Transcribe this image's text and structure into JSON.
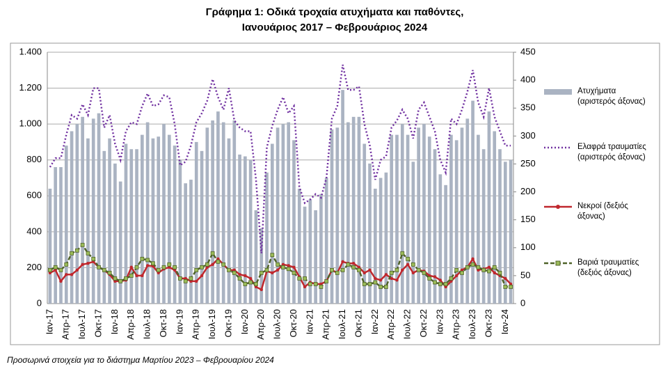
{
  "chart_data": {
    "type": "bar-line",
    "title": "Γράφημα 1: Οδικά τροχαία ατυχήματα και παθόντες,",
    "subtitle": "Ιανουάριος 2017 – Φεβρουάριος 2024",
    "note": "Προσωρινά στοιχεία για το διάστημα Μαρτίου 2023 – Φεβρουαρίου 2024",
    "categories": [
      "Ιαν-17",
      null,
      null,
      "Απρ-17",
      null,
      null,
      "Ιουλ-17",
      null,
      null,
      "Οκτ-17",
      null,
      null,
      "Ιαν-18",
      null,
      null,
      "Απρ-18",
      null,
      null,
      "Ιουλ-18",
      null,
      null,
      "Οκτ-18",
      null,
      null,
      "Ιαν-19",
      null,
      null,
      "Απρ-19",
      null,
      null,
      "Ιουλ-19",
      null,
      null,
      "Οκτ-19",
      null,
      null,
      "Ιαν-20",
      null,
      null,
      "Απρ-20",
      null,
      null,
      "Ιουλ-20",
      null,
      null,
      "Οκτ-20",
      null,
      null,
      "Ιαν-21",
      null,
      null,
      "Απρ-21",
      null,
      null,
      "Ιουλ-21",
      null,
      null,
      "Οκτ-21",
      null,
      null,
      "Ιαν-22",
      null,
      null,
      "Απρ-22",
      null,
      null,
      "Ιουλ-22",
      null,
      null,
      "Οκτ-22",
      null,
      null,
      "Ιαν-23",
      null,
      null,
      "Απρ-23",
      null,
      null,
      "Ιουλ-23",
      null,
      null,
      "Οκτ-23",
      null,
      null,
      "Ιαν-24",
      null
    ],
    "ylim": [
      0,
      1400
    ],
    "yticks": [
      0,
      200,
      400,
      600,
      800,
      {
        "value": 1000,
        "label": "1.000"
      },
      {
        "value": 1200,
        "label": "1.200"
      },
      {
        "value": 1400,
        "label": "1.400"
      }
    ],
    "y2lim": [
      0,
      450
    ],
    "y2ticks": [
      0,
      50,
      100,
      150,
      200,
      250,
      300,
      350,
      400,
      450
    ],
    "grid": true,
    "legend": "right",
    "series": [
      {
        "name": "Ατυχήματα (αριστερός άξονας)",
        "kind": "bar",
        "color": "#aab3c2",
        "values": [
          640,
          760,
          760,
          880,
          960,
          1000,
          1040,
          920,
          1030,
          1060,
          850,
          920,
          780,
          680,
          890,
          860,
          860,
          940,
          1010,
          920,
          930,
          1000,
          940,
          880,
          800,
          670,
          690,
          900,
          850,
          980,
          1020,
          1070,
          1010,
          920,
          1020,
          830,
          820,
          800,
          520,
          420,
          730,
          890,
          980,
          1000,
          1010,
          910,
          640,
          540,
          580,
          520,
          610,
          700,
          970,
          980,
          1190,
          1010,
          1040,
          1040,
          890,
          780,
          640,
          700,
          730,
          940,
          940,
          1000,
          940,
          790,
          980,
          1000,
          930,
          860,
          720,
          660,
          940,
          910,
          980,
          1030,
          1130,
          940,
          860,
          1070,
          960,
          860,
          790,
          800
        ]
      },
      {
        "name": "Ελαφρά τραυματίες (αριστερός άξονας)",
        "kind": "dotted",
        "color": "#7030a0",
        "values": [
          760,
          810,
          810,
          940,
          1050,
          1030,
          1110,
          1050,
          1200,
          1200,
          980,
          1050,
          890,
          800,
          960,
          1010,
          1000,
          1100,
          1170,
          1100,
          1110,
          1160,
          1150,
          1000,
          770,
          790,
          880,
          1010,
          1060,
          1130,
          1250,
          1150,
          1080,
          1200,
          1020,
          980,
          960,
          960,
          690,
          280,
          870,
          990,
          1080,
          1150,
          1060,
          1100,
          650,
          560,
          580,
          610,
          590,
          700,
          1030,
          1100,
          1330,
          1190,
          1190,
          1210,
          1000,
          880,
          690,
          800,
          820,
          980,
          1020,
          1080,
          1030,
          920,
          1080,
          1120,
          1040,
          960,
          800,
          730,
          1030,
          1000,
          1080,
          1180,
          1300,
          1120,
          1040,
          1200,
          1040,
          960,
          880,
          880
        ]
      },
      {
        "name": "Νεκροί (δεξιός άξονας)",
        "kind": "line",
        "axis": "y2",
        "color": "#c0272d",
        "values": [
          55,
          60,
          40,
          52,
          52,
          60,
          70,
          72,
          75,
          65,
          60,
          52,
          40,
          40,
          42,
          65,
          50,
          50,
          68,
          67,
          55,
          62,
          65,
          60,
          45,
          45,
          40,
          40,
          50,
          65,
          70,
          80,
          70,
          60,
          60,
          52,
          50,
          45,
          30,
          25,
          58,
          55,
          60,
          70,
          68,
          65,
          48,
          30,
          38,
          35,
          35,
          40,
          60,
          55,
          75,
          72,
          72,
          65,
          55,
          60,
          45,
          42,
          52,
          45,
          42,
          60,
          70,
          55,
          60,
          58,
          50,
          48,
          42,
          30,
          40,
          50,
          60,
          65,
          80,
          60,
          62,
          65,
          55,
          50,
          45,
          35
        ]
      },
      {
        "name": "Βαριά τραυματίες (δεξιός άξονας)",
        "kind": "dashed",
        "axis": "y2",
        "color": "#4f6228",
        "values": [
          60,
          65,
          60,
          70,
          90,
          95,
          105,
          90,
          80,
          65,
          60,
          55,
          45,
          40,
          45,
          50,
          65,
          80,
          78,
          72,
          60,
          65,
          70,
          65,
          45,
          40,
          45,
          60,
          65,
          70,
          90,
          75,
          70,
          60,
          55,
          45,
          35,
          38,
          35,
          55,
          60,
          87,
          70,
          65,
          62,
          55,
          45,
          45,
          35,
          35,
          30,
          40,
          60,
          55,
          60,
          70,
          65,
          60,
          35,
          35,
          38,
          30,
          30,
          55,
          60,
          90,
          80,
          70,
          60,
          55,
          45,
          38,
          35,
          35,
          45,
          60,
          55,
          65,
          70,
          65,
          60,
          58,
          65,
          55,
          30,
          30
        ]
      }
    ]
  }
}
